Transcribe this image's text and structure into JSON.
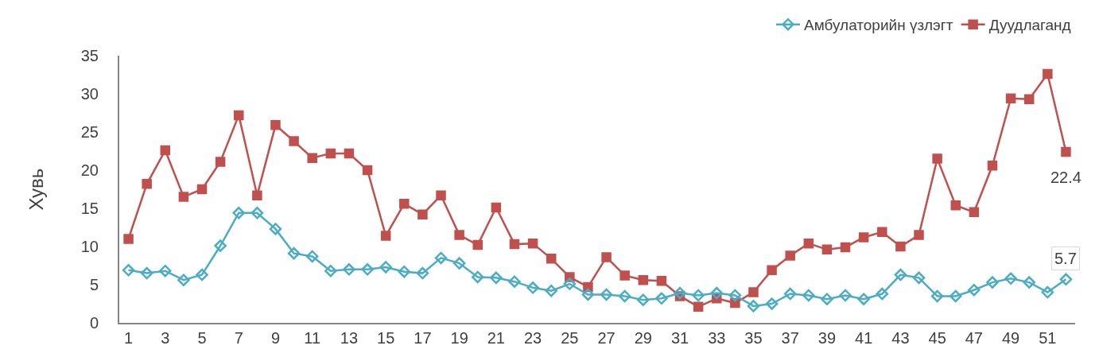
{
  "chart_data": {
    "type": "line",
    "ylabel": "Хувь",
    "x": [
      1,
      2,
      3,
      4,
      5,
      6,
      7,
      8,
      9,
      10,
      11,
      12,
      13,
      14,
      15,
      16,
      17,
      18,
      19,
      20,
      21,
      22,
      23,
      24,
      25,
      26,
      27,
      28,
      29,
      30,
      31,
      32,
      33,
      34,
      35,
      36,
      37,
      38,
      39,
      40,
      41,
      42,
      43,
      44,
      45,
      46,
      47,
      48,
      49,
      50,
      51,
      52
    ],
    "xlim": [
      0.5,
      52.5
    ],
    "xticks": [
      1,
      3,
      5,
      7,
      9,
      11,
      13,
      15,
      17,
      19,
      21,
      23,
      25,
      27,
      29,
      31,
      33,
      35,
      37,
      39,
      41,
      43,
      45,
      47,
      49,
      51
    ],
    "ylim": [
      0,
      35
    ],
    "yticks": [
      0,
      5,
      10,
      15,
      20,
      25,
      30,
      35
    ],
    "grid": false,
    "legend": "top right",
    "series": [
      {
        "name": "Амбулаторийн үзлэгт",
        "color": "#4bacc6",
        "marker": "diamond",
        "values": [
          6.9,
          6.5,
          6.8,
          5.6,
          6.3,
          10.1,
          14.4,
          14.4,
          12.3,
          9.1,
          8.7,
          6.8,
          7.0,
          7.0,
          7.3,
          6.7,
          6.5,
          8.5,
          7.8,
          6.0,
          5.9,
          5.4,
          4.6,
          4.2,
          5.1,
          3.7,
          3.7,
          3.5,
          3.0,
          3.2,
          3.9,
          3.6,
          3.9,
          3.6,
          2.2,
          2.5,
          3.8,
          3.6,
          3.1,
          3.6,
          3.1,
          3.8,
          6.3,
          5.9,
          3.5,
          3.5,
          4.3,
          5.3,
          5.8,
          5.3,
          4.0,
          5.7
        ],
        "value_labels": [
          null,
          null,
          null,
          null,
          null,
          null,
          null,
          null,
          null,
          null,
          null,
          null,
          null,
          null,
          null,
          null,
          null,
          null,
          null,
          null,
          null,
          null,
          null,
          null,
          null,
          null,
          null,
          null,
          null,
          null,
          null,
          null,
          null,
          null,
          null,
          null,
          null,
          null,
          null,
          null,
          null,
          null,
          null,
          null,
          null,
          null,
          null,
          null,
          null,
          null,
          null,
          "5.7"
        ]
      },
      {
        "name": "Дуудлаганд",
        "color": "#c0504d",
        "marker": "square",
        "values": [
          11.0,
          18.2,
          22.6,
          16.5,
          17.5,
          21.1,
          27.2,
          16.7,
          25.9,
          23.8,
          21.6,
          22.2,
          22.2,
          20.0,
          11.4,
          15.6,
          14.2,
          16.7,
          11.5,
          10.2,
          15.1,
          10.3,
          10.4,
          8.4,
          6.0,
          4.7,
          8.6,
          6.2,
          5.6,
          5.5,
          3.5,
          2.1,
          3.2,
          2.6,
          4.0,
          6.9,
          8.8,
          10.4,
          9.6,
          9.9,
          11.2,
          11.9,
          10.0,
          11.5,
          21.5,
          15.4,
          14.5,
          20.6,
          29.4,
          29.3,
          32.6,
          22.4
        ],
        "value_labels": [
          null,
          null,
          null,
          null,
          null,
          null,
          null,
          null,
          null,
          null,
          null,
          null,
          null,
          null,
          null,
          null,
          null,
          null,
          null,
          null,
          null,
          null,
          null,
          null,
          null,
          null,
          null,
          null,
          null,
          null,
          null,
          null,
          null,
          null,
          null,
          null,
          null,
          null,
          null,
          null,
          null,
          null,
          null,
          null,
          null,
          null,
          null,
          null,
          null,
          null,
          null,
          "22.4"
        ]
      }
    ]
  }
}
